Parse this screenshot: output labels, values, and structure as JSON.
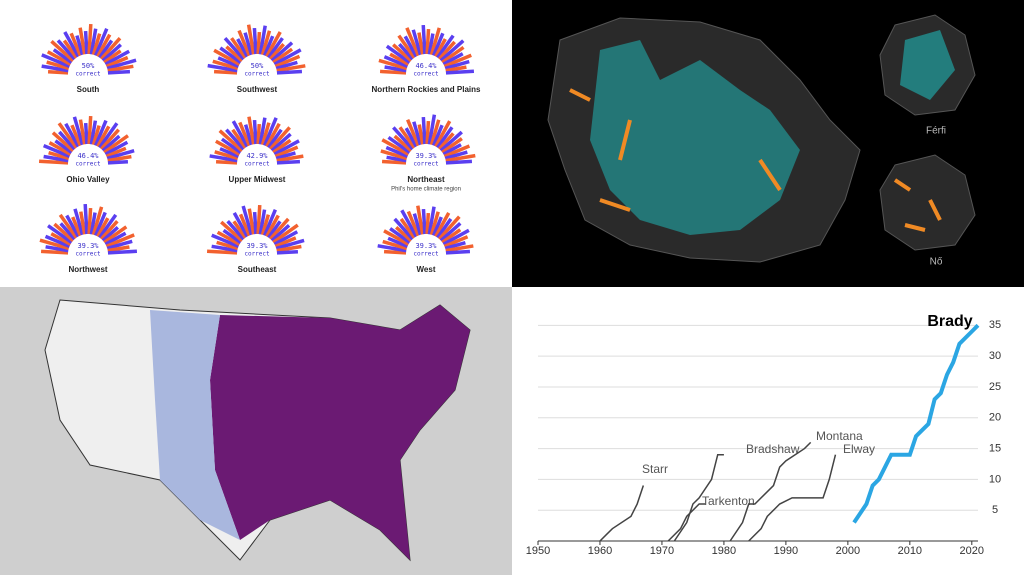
{
  "radial_panels": [
    {
      "region": "South",
      "percent": "50%",
      "caption": "correct"
    },
    {
      "region": "Southwest",
      "percent": "50%",
      "caption": "correct"
    },
    {
      "region": "Northern Rockies and Plains",
      "percent": "46.4%",
      "caption": "correct"
    },
    {
      "region": "Ohio Valley",
      "percent": "46.4%",
      "caption": "correct"
    },
    {
      "region": "Upper Midwest",
      "percent": "42.9%",
      "caption": "correct"
    },
    {
      "region": "Northeast",
      "percent": "39.3%",
      "caption": "correct",
      "note": "Phil's home climate region"
    },
    {
      "region": "Northwest",
      "percent": "39.3%",
      "caption": "correct"
    },
    {
      "region": "Southeast",
      "percent": "39.3%",
      "caption": "correct"
    },
    {
      "region": "West",
      "percent": "39.3%",
      "caption": "correct"
    }
  ],
  "budapest_map": {
    "men_label": "Férfi",
    "women_label": "Nő"
  },
  "chart_data": {
    "type": "line",
    "xlim": [
      1950,
      2021
    ],
    "xticks": [
      1950,
      1960,
      1970,
      1980,
      1990,
      2000,
      2010,
      2020
    ],
    "ylim": [
      0,
      37
    ],
    "yticks": [
      5,
      10,
      15,
      20,
      25,
      30,
      35
    ],
    "series": [
      {
        "name": "Brady",
        "color": "#2ba6e3",
        "x": [
          2001,
          2003,
          2004,
          2005,
          2006,
          2007,
          2009,
          2010,
          2011,
          2012,
          2013,
          2014,
          2015,
          2016,
          2017,
          2018,
          2020,
          2021
        ],
        "values": [
          3,
          6,
          9,
          10,
          12,
          14,
          14,
          14,
          17,
          18,
          19,
          23,
          24,
          27,
          29,
          32,
          34,
          35
        ]
      },
      {
        "name": "Starr",
        "color": "#444444",
        "x": [
          1960,
          1961,
          1962,
          1965,
          1966,
          1967
        ],
        "values": [
          0,
          1,
          2,
          4,
          6,
          9
        ]
      },
      {
        "name": "Tarkenton",
        "color": "#444444",
        "x": [
          1971,
          1973,
          1974,
          1976,
          1977
        ],
        "values": [
          0,
          2,
          4,
          6,
          6
        ]
      },
      {
        "name": "Bradshaw",
        "color": "#444444",
        "x": [
          1972,
          1974,
          1975,
          1976,
          1978,
          1979,
          1980
        ],
        "values": [
          0,
          3,
          6,
          7,
          10,
          14,
          14
        ]
      },
      {
        "name": "Montana",
        "color": "#444444",
        "x": [
          1981,
          1983,
          1984,
          1985,
          1988,
          1989,
          1990,
          1993,
          1994
        ],
        "values": [
          0,
          3,
          6,
          6,
          9,
          12,
          13,
          15,
          16
        ]
      },
      {
        "name": "Elway",
        "color": "#444444",
        "x": [
          1984,
          1986,
          1987,
          1989,
          1991,
          1993,
          1996,
          1997,
          1998
        ],
        "values": [
          0,
          2,
          4,
          6,
          7,
          7,
          7,
          10,
          14
        ]
      }
    ]
  }
}
